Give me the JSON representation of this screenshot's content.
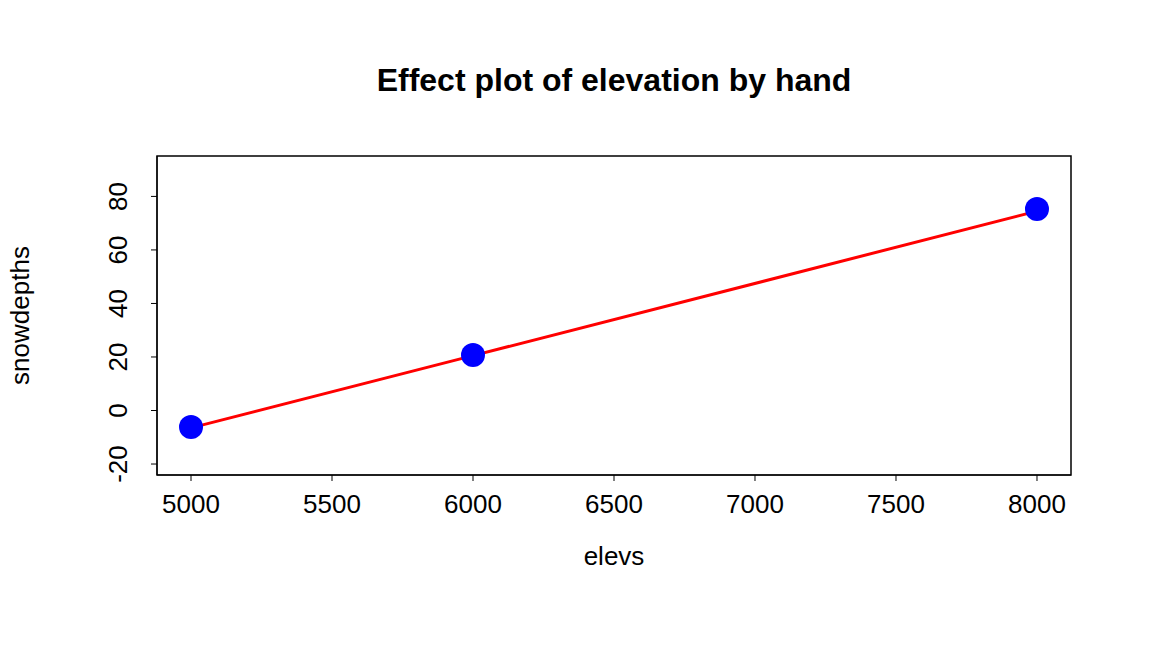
{
  "chart_data": {
    "type": "scatter",
    "title": "Effect plot of elevation by hand",
    "x_label": "elevs",
    "y_label": "snowdepths",
    "x": [
      5000,
      6000,
      8000
    ],
    "series": [
      {
        "type": "scatter",
        "color": "#0000ff",
        "marker": "circle",
        "values": [
          -6.2,
          20.7,
          75.3
        ]
      },
      {
        "type": "line",
        "color": "#ff0000",
        "line_style": "solid",
        "values": [
          -6.5,
          20.5,
          74.5
        ]
      }
    ],
    "xlim": [
      4879.4,
      8120.6
    ],
    "ylim": [
      -24.1,
      95.1
    ],
    "xticks": [
      5000,
      5500,
      6000,
      6500,
      7000,
      7500,
      8000
    ],
    "yticks": [
      -20,
      0,
      20,
      40,
      60,
      80
    ],
    "grid": false
  }
}
